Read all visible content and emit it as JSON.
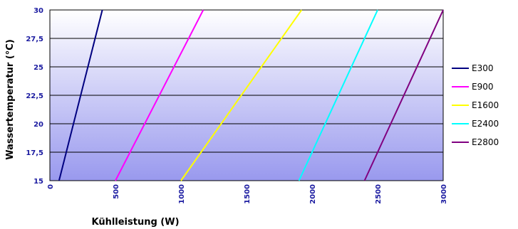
{
  "chart_data": {
    "type": "line",
    "title": "",
    "xlabel": "Kühlleistung (W)",
    "ylabel": "Wassertemperatur  (°C)",
    "xlim": [
      0,
      3000
    ],
    "ylim": [
      15,
      30
    ],
    "x_ticks": [
      "0",
      "500",
      "1000",
      "1500",
      "2000",
      "2500",
      "3000"
    ],
    "y_ticks": [
      "15",
      "17,5",
      "20",
      "22,5",
      "25",
      "27,5",
      "30"
    ],
    "grid": "horizontal",
    "legend_position": "right",
    "plot_background": "gradient white-top to lavender-bottom",
    "series": [
      {
        "name": "E300",
        "color": "#000080",
        "points": [
          [
            70,
            15
          ],
          [
            400,
            30
          ]
        ]
      },
      {
        "name": "E900",
        "color": "#ff00ff",
        "points": [
          [
            500,
            15
          ],
          [
            1170,
            30
          ]
        ]
      },
      {
        "name": "E1600",
        "color": "#ffff00",
        "points": [
          [
            1000,
            15
          ],
          [
            1920,
            30
          ]
        ]
      },
      {
        "name": "E2400",
        "color": "#00ffff",
        "points": [
          [
            1900,
            15
          ],
          [
            2500,
            30
          ]
        ]
      },
      {
        "name": "E2800",
        "color": "#800080",
        "points": [
          [
            2400,
            15
          ],
          [
            3000,
            30
          ]
        ]
      }
    ]
  }
}
